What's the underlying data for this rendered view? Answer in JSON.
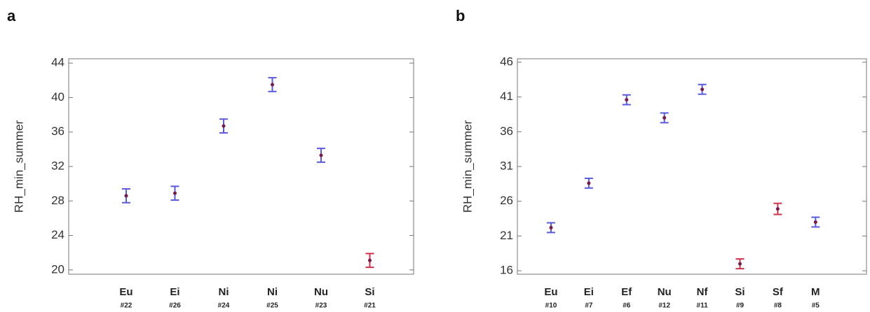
{
  "chart_data": [
    {
      "type": "errorbar",
      "panel": "a",
      "ylabel": "RH_min_summer",
      "categories": [
        "Eu",
        "Ei",
        "Ni",
        "Ni",
        "Nu",
        "Si"
      ],
      "sample_ids": [
        "#22",
        "#26",
        "#24",
        "#25",
        "#23",
        "#21"
      ],
      "values": [
        28.6,
        28.9,
        36.7,
        41.5,
        33.3,
        21.1
      ],
      "errors": [
        0.8,
        0.8,
        0.8,
        0.8,
        0.8,
        0.8
      ],
      "colors": [
        "#5a5ae0",
        "#5a5ae0",
        "#5a5ae0",
        "#5a5ae0",
        "#5a5ae0",
        "#d0324a"
      ],
      "point_color": "#7a1a4a",
      "ylim": [
        19.5,
        44.5
      ],
      "yticks": [
        20,
        24,
        28,
        32,
        36,
        40,
        44
      ]
    },
    {
      "type": "errorbar",
      "panel": "b",
      "ylabel": "RH_min_summer",
      "categories": [
        "Eu",
        "Ei",
        "Ef",
        "Nu",
        "Nf",
        "Si",
        "Sf",
        "M"
      ],
      "sample_ids": [
        "#10",
        "#7",
        "#6",
        "#12",
        "#11",
        "#9",
        "#8",
        "#5"
      ],
      "values": [
        22.2,
        28.6,
        40.6,
        38.0,
        42.1,
        17.0,
        24.9,
        23.0
      ],
      "errors": [
        0.7,
        0.7,
        0.7,
        0.7,
        0.7,
        0.7,
        0.8,
        0.7
      ],
      "colors": [
        "#5a5ae0",
        "#5a5ae0",
        "#5a5ae0",
        "#5a5ae0",
        "#5a5ae0",
        "#d0324a",
        "#d0324a",
        "#5a5ae0"
      ],
      "point_color": "#7a1a4a",
      "ylim": [
        15.5,
        46.5
      ],
      "yticks": [
        16,
        21,
        26,
        31,
        36,
        41,
        46
      ]
    }
  ]
}
